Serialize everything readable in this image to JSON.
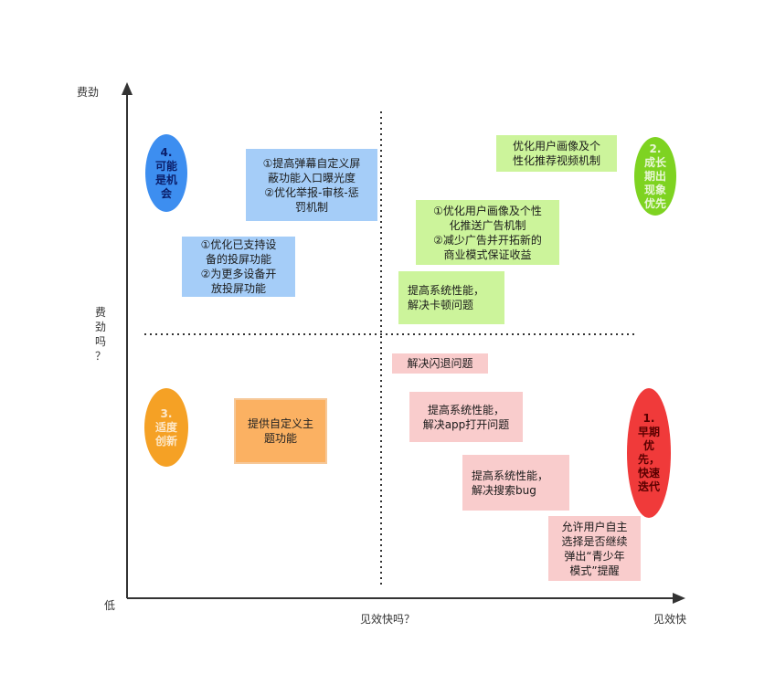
{
  "axes": {
    "y_top": "费劲",
    "y_mid": "费\n劲\n吗\n？",
    "origin": "低",
    "x_mid": "见效快吗？",
    "x_right": "见效快"
  },
  "quadrants": {
    "q4": "4.\n可能\n是机\n会",
    "q2": "2.\n成长\n期出\n现象\n优先",
    "q3": "3.\n适度\n创新",
    "q1": "1.\n早期\n优\n先，\n快速\n迭代"
  },
  "items": {
    "blue_1": "①提高弹幕自定义屏\n蔽功能入口曝光度\n②优化举报-审核-惩\n罚机制",
    "blue_2": "①优化已支持设\n备的投屏功能\n②为更多设备开\n放投屏功能",
    "green_1": "优化用户画像及个\n性化推荐视频机制",
    "green_2": "①优化用户画像及个性\n化推送广告机制\n②减少广告并开拓新的\n商业模式保证收益",
    "green_3": "提高系统性能，\n解决卡顿问题",
    "orange_1": "提供自定义主\n题功能",
    "pink_1": "解决闪退问题",
    "pink_2": "提高系统性能，\n解决app打开问题",
    "pink_3": "提高系统性能，\n解决搜索bug",
    "pink_4": "允许用户自主\n选择是否继续\n弹出“青少年\n模式”提醒"
  },
  "colors": {
    "blue_box": "#a5cdf8",
    "green_box": "#ccf49b",
    "pink_box": "#f9cccc",
    "orange_box": "#fbb162",
    "q4_pill": "#3d8ef0",
    "q2_pill": "#7ed321",
    "q3_pill": "#f5a125",
    "q1_pill": "#f03a3a"
  }
}
